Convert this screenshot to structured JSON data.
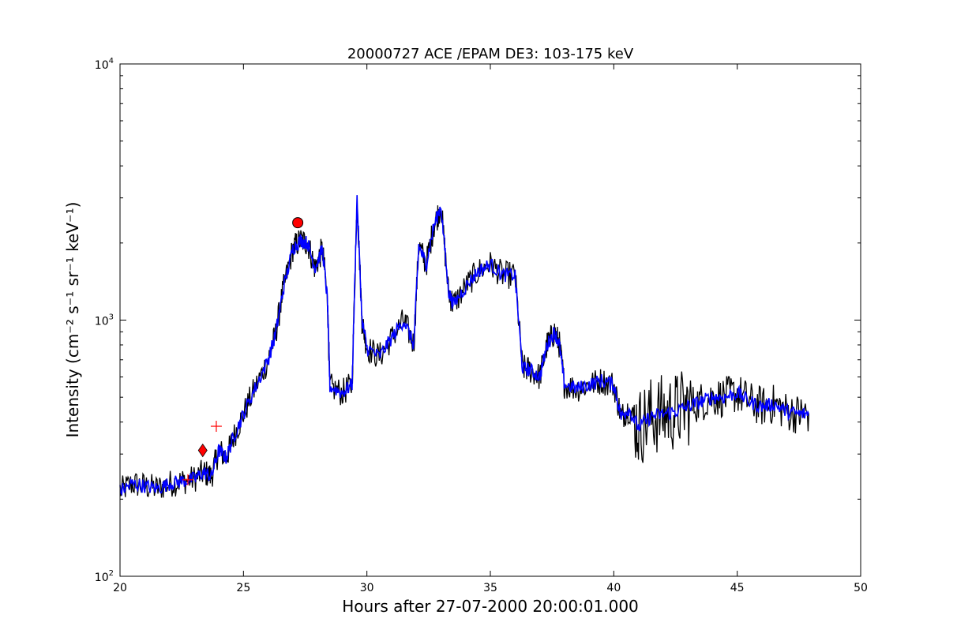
{
  "chart_data": {
    "type": "line",
    "title": "20000727 ACE /EPAM DE3: 103-175 keV",
    "xlabel": "Hours after 27-07-2000 20:00:01.000",
    "ylabel": "Intensity (cm⁻² s⁻¹ sr⁻¹ keV⁻¹)",
    "xlim": [
      20,
      50
    ],
    "ylim": [
      100,
      10000
    ],
    "yscale": "log",
    "grid": false,
    "xticks": [
      20,
      25,
      30,
      35,
      40,
      45,
      50
    ],
    "xtick_labels": [
      "20",
      "25",
      "30",
      "35",
      "40",
      "45",
      "50"
    ],
    "yticks": [
      100,
      1000,
      10000
    ],
    "ytick_labels": [
      {
        "base": "10",
        "exp": "2"
      },
      {
        "base": "10",
        "exp": "3"
      },
      {
        "base": "10",
        "exp": "4"
      }
    ],
    "series": [
      {
        "style": "raw",
        "color": "#000000",
        "x": [
          20.0,
          20.5,
          21.0,
          21.5,
          22.0,
          22.5,
          23.0,
          23.4,
          23.7,
          24.0,
          24.3,
          24.6,
          25.0,
          25.5,
          26.0,
          26.3,
          26.6,
          27.0,
          27.3,
          27.6,
          27.9,
          28.2,
          28.4,
          28.5,
          29.0,
          29.4,
          29.6,
          29.8,
          30.0,
          30.5,
          31.0,
          31.5,
          31.9,
          32.1,
          32.4,
          32.7,
          33.0,
          33.3,
          33.5,
          34.0,
          34.5,
          35.0,
          35.5,
          36.0,
          36.3,
          36.6,
          37.0,
          37.3,
          37.6,
          37.8,
          38.0,
          38.5,
          39.0,
          39.5,
          40.0,
          40.3,
          40.6,
          41.0,
          41.5,
          42.0,
          42.5,
          43.0,
          43.5,
          44.0,
          44.5,
          45.0,
          45.5,
          46.0,
          46.5,
          47.0,
          47.5,
          47.9
        ],
        "y": [
          215,
          230,
          225,
          220,
          230,
          235,
          240,
          255,
          245,
          310,
          290,
          350,
          430,
          550,
          700,
          880,
          1300,
          1900,
          2050,
          2000,
          1600,
          1900,
          1200,
          550,
          520,
          560,
          3000,
          1000,
          780,
          720,
          850,
          1000,
          800,
          1950,
          1650,
          2300,
          2800,
          1300,
          1150,
          1350,
          1550,
          1650,
          1500,
          1500,
          650,
          640,
          600,
          800,
          900,
          800,
          560,
          540,
          560,
          580,
          560,
          420,
          450,
          380,
          420,
          430,
          440,
          460,
          480,
          500,
          500,
          520,
          480,
          460,
          470,
          440,
          430,
          430
        ]
      },
      {
        "style": "smoothed",
        "color": "#0000ff",
        "x": [
          20.0,
          20.5,
          21.0,
          21.5,
          22.0,
          22.5,
          23.0,
          23.4,
          23.7,
          24.0,
          24.3,
          24.6,
          25.0,
          25.5,
          26.0,
          26.3,
          26.6,
          27.0,
          27.3,
          27.6,
          27.9,
          28.2,
          28.4,
          28.5,
          29.0,
          29.4,
          29.6,
          29.8,
          30.0,
          30.5,
          31.0,
          31.5,
          31.9,
          32.1,
          32.4,
          32.7,
          33.0,
          33.3,
          33.5,
          34.0,
          34.5,
          35.0,
          35.5,
          36.0,
          36.3,
          36.6,
          37.0,
          37.3,
          37.6,
          37.8,
          38.0,
          38.5,
          39.0,
          39.5,
          40.0,
          40.3,
          40.6,
          41.0,
          41.5,
          42.0,
          42.5,
          43.0,
          43.5,
          44.0,
          44.5,
          45.0,
          45.5,
          46.0,
          46.5,
          47.0,
          47.5,
          47.9
        ],
        "y": [
          215,
          230,
          225,
          220,
          230,
          235,
          240,
          255,
          245,
          310,
          290,
          350,
          430,
          550,
          700,
          880,
          1300,
          1900,
          2050,
          2000,
          1600,
          1900,
          1200,
          550,
          520,
          560,
          3000,
          1000,
          780,
          720,
          850,
          1000,
          800,
          1950,
          1650,
          2300,
          2800,
          1300,
          1150,
          1350,
          1550,
          1650,
          1500,
          1500,
          650,
          640,
          600,
          800,
          900,
          800,
          560,
          540,
          560,
          580,
          560,
          420,
          450,
          380,
          420,
          430,
          440,
          460,
          480,
          500,
          500,
          520,
          480,
          460,
          470,
          440,
          430,
          430
        ]
      }
    ],
    "markers": [
      {
        "shape": "circle",
        "x": 27.2,
        "y": 2400,
        "color": "#ff0000"
      },
      {
        "shape": "diamond",
        "x": 23.35,
        "y": 310,
        "color": "#ff0000"
      },
      {
        "shape": "plus",
        "x": 23.9,
        "y": 385,
        "color": "#ff0000"
      },
      {
        "shape": "plus",
        "x": 22.75,
        "y": 238,
        "color": "#ff0000"
      }
    ]
  }
}
